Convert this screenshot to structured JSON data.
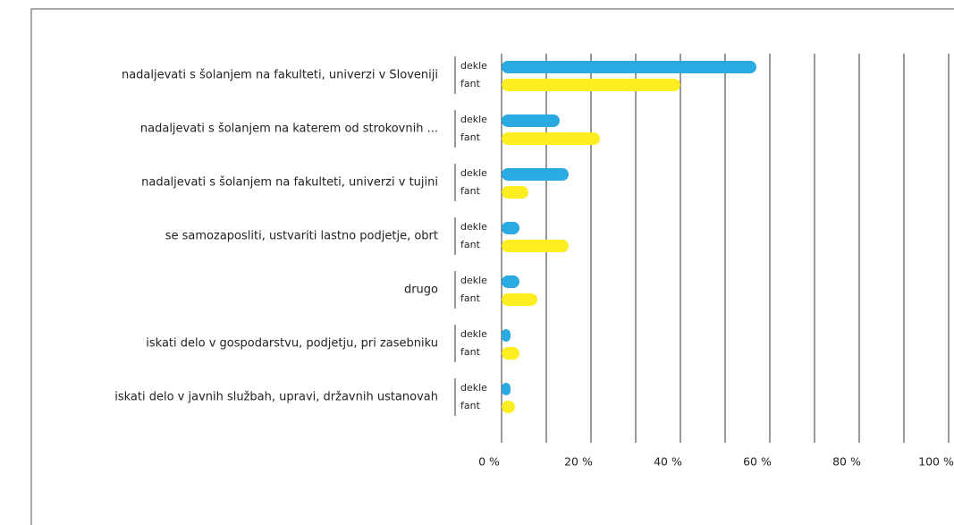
{
  "chart_data": {
    "type": "bar",
    "orientation": "horizontal",
    "categories": [
      "nadaljevati s šolanjem na fakulteti, univerzi v Sloveniji",
      "nadaljevati s šolanjem na katerem od strokovnih ...",
      "nadaljevati s šolanjem na fakulteti, univerzi v tujini",
      "se samozaposliti, ustvariti lastno podjetje, obrt",
      "drugo",
      "iskati delo v gospodarstvu, podjetju, pri zasebniku",
      "iskati delo v javnih službah, upravi, državnih ustanovah"
    ],
    "series": [
      {
        "name": "dekle",
        "color": "#29abe2",
        "values": [
          57,
          13,
          15,
          4,
          4,
          2,
          2
        ]
      },
      {
        "name": "fant",
        "color": "#fcee21",
        "values": [
          40,
          22,
          6,
          15,
          8,
          4,
          3
        ]
      }
    ],
    "xlim": [
      0,
      100
    ],
    "xticks": [
      {
        "value": 0,
        "label": "0 %"
      },
      {
        "value": 20,
        "label": "20 %"
      },
      {
        "value": 40,
        "label": "40 %"
      },
      {
        "value": 60,
        "label": "60 %"
      },
      {
        "value": 80,
        "label": "80 %"
      },
      {
        "value": 100,
        "label": "100 %"
      }
    ],
    "minor_xticks": [
      10,
      30,
      50,
      70,
      90
    ],
    "grid": true
  }
}
